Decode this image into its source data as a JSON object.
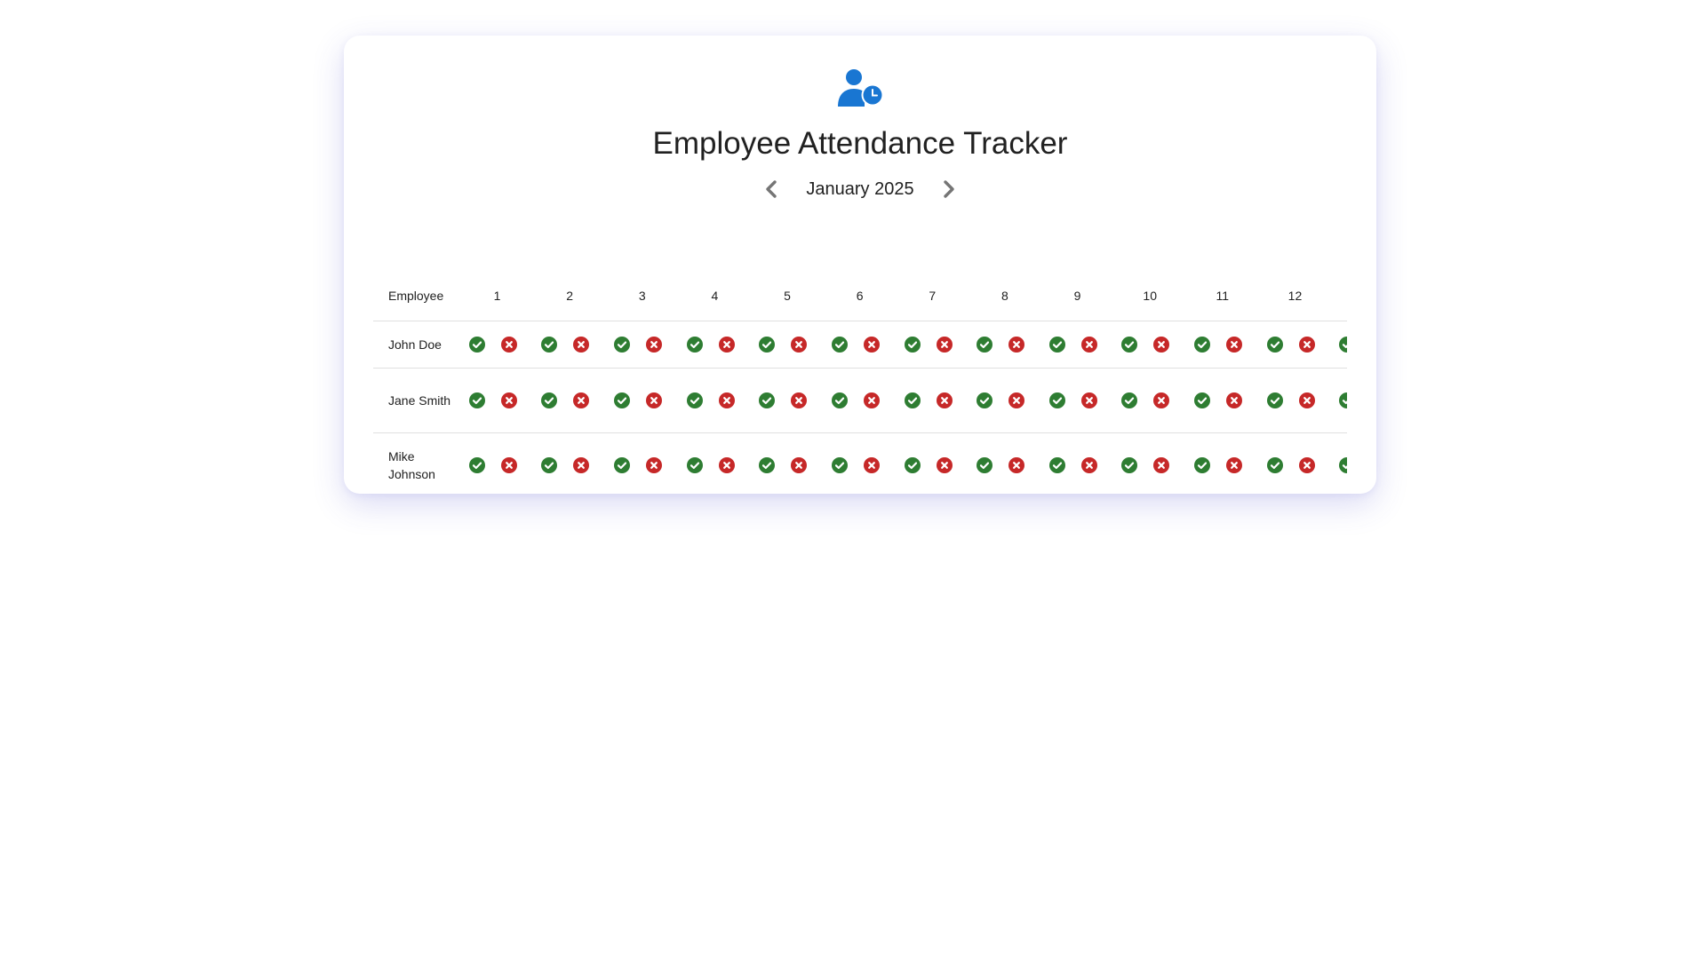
{
  "header": {
    "icon": "user-clock-icon",
    "title": "Employee Attendance Tracker"
  },
  "month_nav": {
    "prev_icon": "chevron-left-icon",
    "next_icon": "chevron-right-icon",
    "label": "January 2025"
  },
  "colors": {
    "accent": "#1976d2",
    "present": "#2e7d32",
    "absent": "#c62828",
    "nav_icon": "#757575",
    "divider": "#e0e0e0"
  },
  "table": {
    "employee_header": "Employee",
    "days": [
      "1",
      "2",
      "3",
      "4",
      "5",
      "6",
      "7",
      "8",
      "9",
      "10",
      "11",
      "12"
    ],
    "status_icons": {
      "present": "check-circle-icon",
      "absent": "x-circle-icon"
    },
    "rows": [
      {
        "name": "John Doe"
      },
      {
        "name": "Jane Smith"
      },
      {
        "name": "Mike Johnson"
      }
    ]
  }
}
